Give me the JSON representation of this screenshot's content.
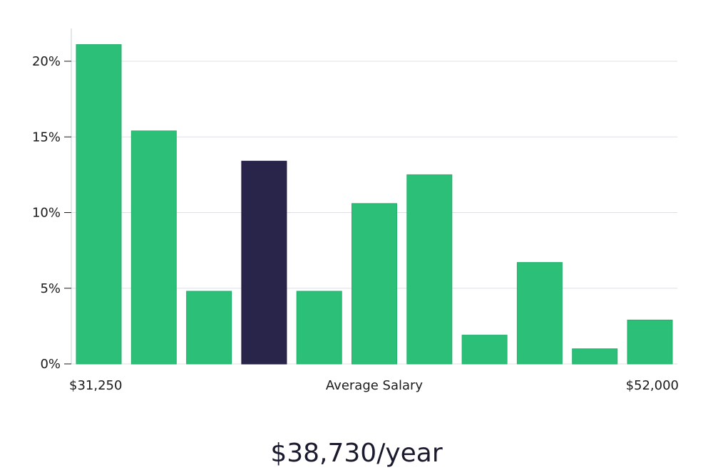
{
  "chart_data": {
    "type": "bar",
    "values": [
      21.1,
      15.4,
      4.8,
      13.4,
      4.8,
      10.6,
      12.5,
      1.9,
      6.7,
      1.0,
      2.9
    ],
    "highlight_index": 3,
    "colors": {
      "bar": "#2bbf77",
      "highlight": "#29254a",
      "grid": "#dde1e6",
      "axis": "#c8ccd2"
    },
    "ylim": [
      0,
      22
    ],
    "yticks": [
      0,
      5,
      10,
      15,
      20
    ],
    "ytick_labels": [
      "0%",
      "5%",
      "10%",
      "15%",
      "20%"
    ],
    "x_range_labels": {
      "min": "$31,250",
      "max": "$52,000"
    },
    "xlabel": "Average Salary",
    "grid": true
  },
  "summary": {
    "salary": "$38,730/year"
  }
}
